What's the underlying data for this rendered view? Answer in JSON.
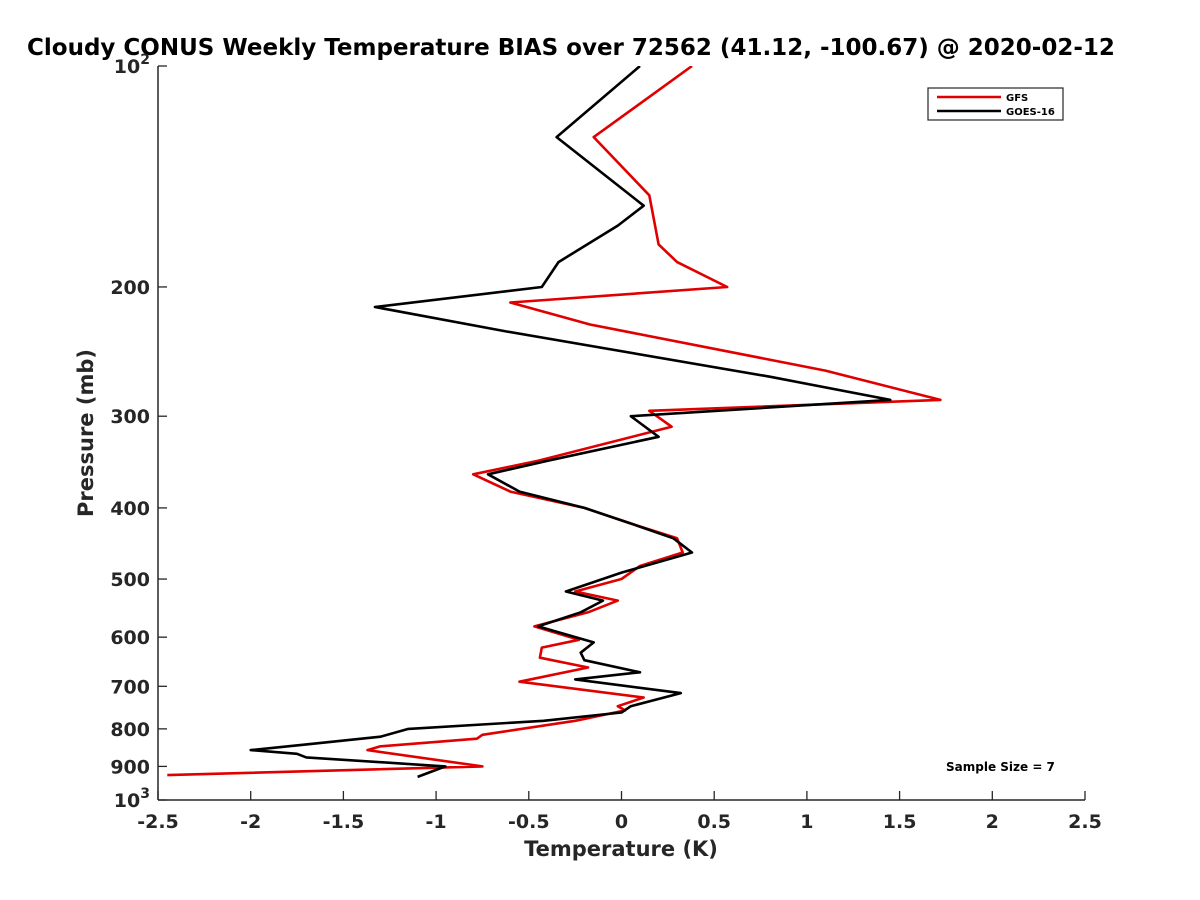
{
  "chart_data": {
    "type": "line",
    "title": "Cloudy CONUS Weekly Temperature BIAS over 72562 (41.12, -100.67) @ 2020-02-12",
    "xlabel": "Temperature (K)",
    "ylabel": "Pressure (mb)",
    "xlim": [
      -2.5,
      2.5
    ],
    "ylim": [
      1000,
      100
    ],
    "y_scale": "log",
    "y_reversed": true,
    "grid": false,
    "legend_position": "top-right",
    "x_ticks": [
      {
        "value": -2.5,
        "label": "-2.5"
      },
      {
        "value": -2,
        "label": "-2"
      },
      {
        "value": -1.5,
        "label": "-1.5"
      },
      {
        "value": -1,
        "label": "-1"
      },
      {
        "value": -0.5,
        "label": "-0.5"
      },
      {
        "value": 0,
        "label": "0"
      },
      {
        "value": 0.5,
        "label": "0.5"
      },
      {
        "value": 1,
        "label": "1"
      },
      {
        "value": 1.5,
        "label": "1.5"
      },
      {
        "value": 2,
        "label": "2"
      },
      {
        "value": 2.5,
        "label": "2.5"
      }
    ],
    "y_ticks": [
      {
        "value": 100,
        "base": "10",
        "exp": "2"
      },
      {
        "value": 200,
        "label": "200"
      },
      {
        "value": 300,
        "label": "300"
      },
      {
        "value": 400,
        "label": "400"
      },
      {
        "value": 500,
        "label": "500"
      },
      {
        "value": 600,
        "label": "600"
      },
      {
        "value": 700,
        "label": "700"
      },
      {
        "value": 800,
        "label": "800"
      },
      {
        "value": 900,
        "label": "900"
      },
      {
        "value": 1000,
        "base": "10",
        "exp": "3"
      }
    ],
    "series": [
      {
        "name": "GFS",
        "color": "#e00000",
        "points": [
          [
            0.38,
            100
          ],
          [
            -0.15,
            125
          ],
          [
            0.15,
            150
          ],
          [
            0.2,
            175
          ],
          [
            0.3,
            185
          ],
          [
            0.57,
            200
          ],
          [
            -0.6,
            210
          ],
          [
            -0.17,
            225
          ],
          [
            1.1,
            260
          ],
          [
            1.72,
            285
          ],
          [
            0.15,
            295
          ],
          [
            0.27,
            310
          ],
          [
            -0.45,
            345
          ],
          [
            -0.8,
            360
          ],
          [
            -0.6,
            380
          ],
          [
            -0.2,
            400
          ],
          [
            0.05,
            420
          ],
          [
            0.3,
            440
          ],
          [
            0.33,
            460
          ],
          [
            0.1,
            480
          ],
          [
            0.0,
            500
          ],
          [
            -0.25,
            520
          ],
          [
            -0.02,
            535
          ],
          [
            -0.18,
            555
          ],
          [
            -0.47,
            580
          ],
          [
            -0.23,
            605
          ],
          [
            -0.43,
            620
          ],
          [
            -0.44,
            640
          ],
          [
            -0.18,
            660
          ],
          [
            -0.55,
            690
          ],
          [
            0.12,
            725
          ],
          [
            -0.02,
            745
          ],
          [
            0.02,
            755
          ],
          [
            -0.25,
            780
          ],
          [
            -0.75,
            815
          ],
          [
            -0.78,
            825
          ],
          [
            -1.3,
            845
          ],
          [
            -1.37,
            855
          ],
          [
            -0.75,
            900
          ],
          [
            -2.45,
            925
          ]
        ]
      },
      {
        "name": "GOES-16",
        "color": "#000000",
        "points": [
          [
            0.1,
            100
          ],
          [
            -0.35,
            125
          ],
          [
            0.12,
            155
          ],
          [
            -0.02,
            165
          ],
          [
            -0.34,
            185
          ],
          [
            -0.43,
            200
          ],
          [
            -1.33,
            213
          ],
          [
            -0.62,
            230
          ],
          [
            0.8,
            265
          ],
          [
            1.45,
            285
          ],
          [
            0.05,
            300
          ],
          [
            0.2,
            320
          ],
          [
            -0.4,
            345
          ],
          [
            -0.72,
            360
          ],
          [
            -0.55,
            380
          ],
          [
            -0.2,
            400
          ],
          [
            0.05,
            420
          ],
          [
            0.28,
            440
          ],
          [
            0.38,
            460
          ],
          [
            0.0,
            490
          ],
          [
            -0.3,
            520
          ],
          [
            -0.1,
            535
          ],
          [
            -0.22,
            555
          ],
          [
            -0.45,
            580
          ],
          [
            -0.15,
            610
          ],
          [
            -0.22,
            630
          ],
          [
            -0.2,
            645
          ],
          [
            0.1,
            670
          ],
          [
            -0.25,
            685
          ],
          [
            0.32,
            715
          ],
          [
            0.05,
            745
          ],
          [
            0.0,
            760
          ],
          [
            -0.42,
            780
          ],
          [
            -1.15,
            800
          ],
          [
            -1.3,
            820
          ],
          [
            -1.7,
            840
          ],
          [
            -2.0,
            855
          ],
          [
            -1.75,
            865
          ],
          [
            -1.7,
            875
          ],
          [
            -0.95,
            900
          ],
          [
            -1.1,
            930
          ]
        ]
      }
    ],
    "annotations": [
      {
        "text": "Sample Size = 7"
      }
    ]
  }
}
